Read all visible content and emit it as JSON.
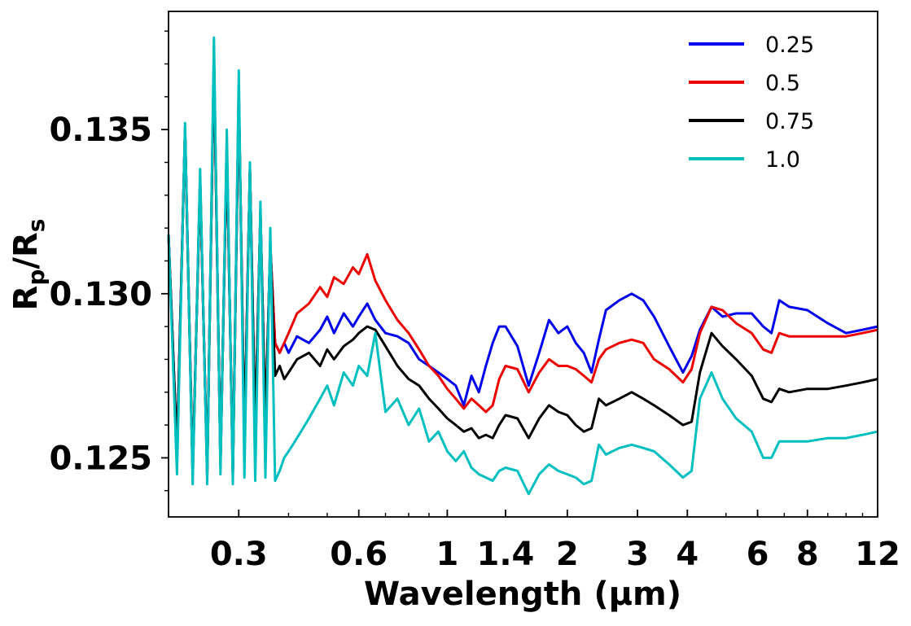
{
  "chart_data": {
    "type": "line",
    "title": "",
    "xlabel": "Wavelength (μm)",
    "ylabel": "Rp/Rs",
    "x_scale": "log",
    "xlim": [
      0.2,
      12
    ],
    "ylim": [
      0.1232,
      0.1386
    ],
    "x_ticks": [
      {
        "value": 0.3,
        "label": "0.3"
      },
      {
        "value": 0.6,
        "label": "0.6"
      },
      {
        "value": 1,
        "label": "1"
      },
      {
        "value": 1.4,
        "label": "1.4"
      },
      {
        "value": 2,
        "label": "2"
      },
      {
        "value": 3,
        "label": "3"
      },
      {
        "value": 4,
        "label": "4"
      },
      {
        "value": 6,
        "label": "6"
      },
      {
        "value": 8,
        "label": "8"
      },
      {
        "value": 12,
        "label": "12"
      }
    ],
    "y_ticks": [
      {
        "value": 0.125,
        "label": "0.125"
      },
      {
        "value": 0.13,
        "label": "0.130"
      },
      {
        "value": 0.135,
        "label": "0.135"
      }
    ],
    "legend_position": "top-right",
    "series": [
      {
        "name": "0.25",
        "color": "#0000ee",
        "x": [
          0.2,
          0.21,
          0.22,
          0.23,
          0.24,
          0.25,
          0.26,
          0.27,
          0.28,
          0.29,
          0.3,
          0.31,
          0.32,
          0.33,
          0.34,
          0.35,
          0.36,
          0.37,
          0.38,
          0.39,
          0.4,
          0.42,
          0.45,
          0.48,
          0.5,
          0.52,
          0.55,
          0.58,
          0.6,
          0.63,
          0.66,
          0.7,
          0.75,
          0.8,
          0.85,
          0.9,
          0.95,
          1.0,
          1.05,
          1.1,
          1.15,
          1.2,
          1.25,
          1.3,
          1.35,
          1.4,
          1.5,
          1.6,
          1.7,
          1.8,
          1.9,
          2.0,
          2.1,
          2.2,
          2.3,
          2.4,
          2.5,
          2.7,
          2.9,
          3.1,
          3.3,
          3.6,
          3.9,
          4.1,
          4.3,
          4.6,
          4.9,
          5.3,
          5.8,
          6.2,
          6.5,
          6.8,
          7.2,
          8.0,
          9.0,
          10.0,
          11.0,
          12.0
        ],
        "y": [
          0.1318,
          0.1252,
          0.135,
          0.1245,
          0.1335,
          0.1245,
          0.1372,
          0.1248,
          0.1345,
          0.1245,
          0.1362,
          0.1255,
          0.1338,
          0.1258,
          0.1325,
          0.126,
          0.1315,
          0.1285,
          0.1282,
          0.1285,
          0.1282,
          0.1287,
          0.1285,
          0.1289,
          0.1293,
          0.1288,
          0.1294,
          0.129,
          0.1293,
          0.1297,
          0.1292,
          0.1288,
          0.1287,
          0.1285,
          0.128,
          0.1278,
          0.1276,
          0.1274,
          0.1272,
          0.1266,
          0.1275,
          0.127,
          0.1278,
          0.1285,
          0.129,
          0.129,
          0.1284,
          0.1272,
          0.1282,
          0.1292,
          0.1288,
          0.129,
          0.1285,
          0.1282,
          0.1276,
          0.1286,
          0.1295,
          0.1298,
          0.13,
          0.1298,
          0.1293,
          0.1284,
          0.1276,
          0.1281,
          0.1289,
          0.1296,
          0.1293,
          0.1294,
          0.1294,
          0.129,
          0.1288,
          0.1298,
          0.1296,
          0.1295,
          0.1291,
          0.1288,
          0.1289,
          0.129
        ]
      },
      {
        "name": "0.5",
        "color": "#ee0000",
        "x": [
          0.2,
          0.21,
          0.22,
          0.23,
          0.24,
          0.25,
          0.26,
          0.27,
          0.28,
          0.29,
          0.3,
          0.31,
          0.32,
          0.33,
          0.34,
          0.35,
          0.36,
          0.37,
          0.38,
          0.39,
          0.4,
          0.42,
          0.45,
          0.48,
          0.5,
          0.52,
          0.55,
          0.58,
          0.6,
          0.63,
          0.66,
          0.7,
          0.75,
          0.8,
          0.85,
          0.9,
          0.95,
          1.0,
          1.05,
          1.1,
          1.15,
          1.2,
          1.25,
          1.3,
          1.35,
          1.4,
          1.5,
          1.6,
          1.7,
          1.8,
          1.9,
          2.0,
          2.1,
          2.2,
          2.3,
          2.4,
          2.5,
          2.7,
          2.9,
          3.1,
          3.3,
          3.6,
          3.9,
          4.1,
          4.3,
          4.6,
          4.9,
          5.3,
          5.8,
          6.2,
          6.5,
          6.8,
          7.2,
          8.0,
          9.0,
          10.0,
          11.0,
          12.0
        ],
        "y": [
          0.1318,
          0.1252,
          0.135,
          0.1245,
          0.1335,
          0.1245,
          0.1372,
          0.1248,
          0.1345,
          0.1245,
          0.1362,
          0.1255,
          0.1338,
          0.1258,
          0.1325,
          0.126,
          0.1315,
          0.1285,
          0.1282,
          0.1285,
          0.1288,
          0.1294,
          0.1297,
          0.1302,
          0.1299,
          0.1305,
          0.1303,
          0.1308,
          0.1306,
          0.1312,
          0.1304,
          0.1298,
          0.1292,
          0.1288,
          0.1283,
          0.1278,
          0.1275,
          0.1271,
          0.1268,
          0.1265,
          0.1268,
          0.1266,
          0.1264,
          0.1266,
          0.1274,
          0.1278,
          0.1277,
          0.127,
          0.1276,
          0.128,
          0.1278,
          0.1278,
          0.1277,
          0.1275,
          0.1273,
          0.128,
          0.1283,
          0.1285,
          0.1286,
          0.1285,
          0.128,
          0.1277,
          0.1273,
          0.1277,
          0.1288,
          0.1296,
          0.1295,
          0.1291,
          0.1288,
          0.1283,
          0.1282,
          0.1288,
          0.1287,
          0.1287,
          0.1287,
          0.1287,
          0.1288,
          0.1289
        ]
      },
      {
        "name": "0.75",
        "color": "#000000",
        "x": [
          0.2,
          0.21,
          0.22,
          0.23,
          0.24,
          0.25,
          0.26,
          0.27,
          0.28,
          0.29,
          0.3,
          0.31,
          0.32,
          0.33,
          0.34,
          0.35,
          0.36,
          0.37,
          0.38,
          0.39,
          0.4,
          0.42,
          0.45,
          0.48,
          0.5,
          0.52,
          0.55,
          0.58,
          0.6,
          0.63,
          0.66,
          0.7,
          0.75,
          0.8,
          0.85,
          0.9,
          0.95,
          1.0,
          1.05,
          1.1,
          1.15,
          1.2,
          1.25,
          1.3,
          1.35,
          1.4,
          1.5,
          1.6,
          1.7,
          1.8,
          1.9,
          2.0,
          2.1,
          2.2,
          2.3,
          2.4,
          2.5,
          2.7,
          2.9,
          3.1,
          3.3,
          3.6,
          3.9,
          4.1,
          4.3,
          4.6,
          4.9,
          5.3,
          5.8,
          6.2,
          6.5,
          6.8,
          7.2,
          8.0,
          9.0,
          10.0,
          11.0,
          12.0
        ],
        "y": [
          0.1318,
          0.1252,
          0.135,
          0.1245,
          0.1335,
          0.1245,
          0.1372,
          0.1248,
          0.1345,
          0.1245,
          0.1362,
          0.1255,
          0.1338,
          0.1258,
          0.1325,
          0.126,
          0.1315,
          0.1275,
          0.1278,
          0.1274,
          0.1276,
          0.128,
          0.1282,
          0.1278,
          0.1283,
          0.128,
          0.1284,
          0.1286,
          0.1288,
          0.129,
          0.1289,
          0.1284,
          0.1278,
          0.1274,
          0.1272,
          0.1268,
          0.1265,
          0.1262,
          0.126,
          0.1258,
          0.1259,
          0.1256,
          0.1257,
          0.1256,
          0.126,
          0.1263,
          0.1262,
          0.1256,
          0.1262,
          0.1266,
          0.1264,
          0.1263,
          0.126,
          0.1258,
          0.1259,
          0.1268,
          0.1266,
          0.1268,
          0.127,
          0.1268,
          0.1266,
          0.1263,
          0.126,
          0.1261,
          0.1276,
          0.1288,
          0.1284,
          0.128,
          0.1275,
          0.1268,
          0.1267,
          0.1271,
          0.127,
          0.1271,
          0.1271,
          0.1272,
          0.1273,
          0.1274
        ]
      },
      {
        "name": "1.0",
        "color": "#00bfbf",
        "x": [
          0.2,
          0.21,
          0.22,
          0.23,
          0.24,
          0.25,
          0.26,
          0.27,
          0.28,
          0.29,
          0.3,
          0.31,
          0.32,
          0.33,
          0.34,
          0.35,
          0.36,
          0.37,
          0.38,
          0.39,
          0.4,
          0.42,
          0.45,
          0.48,
          0.5,
          0.52,
          0.55,
          0.58,
          0.6,
          0.63,
          0.66,
          0.7,
          0.75,
          0.8,
          0.85,
          0.9,
          0.95,
          1.0,
          1.05,
          1.1,
          1.15,
          1.2,
          1.25,
          1.3,
          1.35,
          1.4,
          1.5,
          1.6,
          1.7,
          1.8,
          1.9,
          2.0,
          2.1,
          2.2,
          2.3,
          2.4,
          2.5,
          2.7,
          2.9,
          3.1,
          3.3,
          3.6,
          3.9,
          4.1,
          4.3,
          4.6,
          4.9,
          5.3,
          5.8,
          6.2,
          6.5,
          6.8,
          7.2,
          8.0,
          9.0,
          10.0,
          11.0,
          12.0
        ],
        "y": [
          0.1318,
          0.1245,
          0.1352,
          0.1242,
          0.1338,
          0.1242,
          0.1378,
          0.1245,
          0.135,
          0.1242,
          0.1368,
          0.1244,
          0.134,
          0.1243,
          0.1328,
          0.1244,
          0.132,
          0.1243,
          0.1246,
          0.125,
          0.1252,
          0.1256,
          0.1262,
          0.1268,
          0.1272,
          0.1266,
          0.1276,
          0.1272,
          0.1278,
          0.1275,
          0.1288,
          0.1264,
          0.1268,
          0.126,
          0.1265,
          0.1255,
          0.1258,
          0.1252,
          0.1249,
          0.1252,
          0.1247,
          0.1245,
          0.1244,
          0.1243,
          0.1246,
          0.1247,
          0.1246,
          0.1239,
          0.1245,
          0.1248,
          0.1246,
          0.1245,
          0.1244,
          0.1242,
          0.1243,
          0.1254,
          0.1251,
          0.1253,
          0.1254,
          0.1253,
          0.1252,
          0.1248,
          0.1244,
          0.1246,
          0.1268,
          0.1276,
          0.1268,
          0.1262,
          0.1258,
          0.125,
          0.125,
          0.1255,
          0.1255,
          0.1255,
          0.1256,
          0.1256,
          0.1257,
          0.1258
        ]
      }
    ]
  }
}
